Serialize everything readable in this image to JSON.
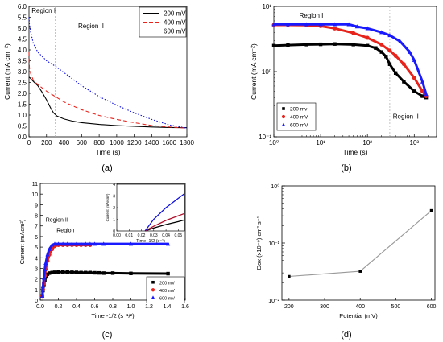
{
  "figure": {
    "panel_labels": [
      "(a)",
      "(b)",
      "(c)",
      "(d)"
    ]
  },
  "chart_data": [
    {
      "panel": "(a)",
      "type": "line",
      "xlabel": "Time (s)",
      "ylabel": "Current (mA cm⁻²)",
      "xlim": [
        0,
        1800
      ],
      "ylim": [
        0,
        6.0
      ],
      "xticks": [
        0,
        200,
        400,
        600,
        800,
        1000,
        1200,
        1400,
        1600,
        1800
      ],
      "yticks": [
        0.0,
        0.5,
        1.0,
        1.5,
        2.0,
        2.5,
        3.0,
        3.5,
        4.0,
        4.5,
        5.0,
        5.5,
        6.0
      ],
      "legend_position": "top-right",
      "annotations": [
        {
          "text": "Region I",
          "x": 30,
          "y": 5.7
        },
        {
          "text": "Region II",
          "x": 560,
          "y": 5.0
        }
      ],
      "vlines": [
        300
      ],
      "series": [
        {
          "name": "200 mV",
          "color": "#000000",
          "dash": "solid",
          "x": [
            0,
            10,
            50,
            100,
            150,
            200,
            250,
            280,
            320,
            400,
            500,
            600,
            800,
            1000,
            1200,
            1400,
            1600,
            1800
          ],
          "y": [
            2.75,
            2.72,
            2.55,
            2.35,
            2.05,
            1.7,
            1.3,
            1.1,
            0.95,
            0.82,
            0.72,
            0.65,
            0.57,
            0.52,
            0.48,
            0.45,
            0.43,
            0.42
          ]
        },
        {
          "name": "400 mV",
          "color": "#e8231c",
          "dash": "dashed",
          "x": [
            0,
            5,
            20,
            50,
            100,
            200,
            300,
            400,
            600,
            800,
            1000,
            1200,
            1400,
            1600,
            1800
          ],
          "y": [
            3.9,
            3.2,
            2.9,
            2.6,
            2.4,
            2.1,
            1.85,
            1.6,
            1.25,
            0.98,
            0.8,
            0.65,
            0.52,
            0.45,
            0.4
          ]
        },
        {
          "name": "600 mV",
          "color": "#1010e0",
          "dash": "dotted",
          "x": [
            0,
            5,
            20,
            50,
            100,
            200,
            300,
            400,
            500,
            600,
            800,
            1000,
            1200,
            1400,
            1600,
            1800
          ],
          "y": [
            5.5,
            5.2,
            4.8,
            4.3,
            3.9,
            3.5,
            3.25,
            2.95,
            2.65,
            2.35,
            1.85,
            1.45,
            1.1,
            0.8,
            0.55,
            0.4
          ]
        }
      ]
    },
    {
      "panel": "(b)",
      "type": "scatter",
      "xlabel": "Time (s)",
      "ylabel": "Current (mA cm⁻²)",
      "xscale": "log",
      "yscale": "log",
      "xlim": [
        1,
        3000
      ],
      "ylim": [
        0.1,
        10
      ],
      "xtick_labels": [
        "10⁰",
        "10¹",
        "10²",
        "10³"
      ],
      "ytick_labels": [
        "10⁻¹",
        "10⁰",
        "10¹"
      ],
      "legend_position": "bottom-left",
      "annotations": [
        {
          "text": "Region I",
          "x": 3.5,
          "y": 6.7
        },
        {
          "text": "Region II",
          "x": 350,
          "y": 0.19
        }
      ],
      "vlines": [
        300
      ],
      "series": [
        {
          "name": "200 mv",
          "color": "#000000",
          "marker": "square",
          "x": [
            1,
            2,
            5,
            10,
            20,
            50,
            100,
            150,
            200,
            250,
            300,
            400,
            600,
            1000,
            1500,
            1800
          ],
          "y": [
            2.5,
            2.55,
            2.6,
            2.62,
            2.65,
            2.6,
            2.5,
            2.3,
            2.0,
            1.7,
            1.3,
            0.95,
            0.7,
            0.5,
            0.42,
            0.4
          ]
        },
        {
          "name": "400 mV",
          "color": "#e8231c",
          "marker": "circle",
          "x": [
            1,
            2,
            5,
            10,
            20,
            50,
            100,
            200,
            300,
            400,
            600,
            1000,
            1500,
            1800
          ],
          "y": [
            5.2,
            5.2,
            5.15,
            5.0,
            4.6,
            3.9,
            3.3,
            2.6,
            2.1,
            1.75,
            1.3,
            0.8,
            0.5,
            0.42
          ]
        },
        {
          "name": "600 mV",
          "color": "#1a1aff",
          "marker": "triangle",
          "x": [
            1,
            2,
            5,
            10,
            20,
            40,
            60,
            100,
            200,
            300,
            500,
            800,
            1000,
            1500,
            1800
          ],
          "y": [
            5.3,
            5.3,
            5.3,
            5.3,
            5.3,
            5.3,
            4.9,
            4.6,
            4.0,
            3.6,
            2.9,
            2.0,
            1.5,
            0.7,
            0.45
          ]
        }
      ]
    },
    {
      "panel": "(c)",
      "type": "scatter",
      "xlabel": "Time -1/2 (s⁻¹/²)",
      "ylabel": "Current (mAcm²)",
      "xlim": [
        0.0,
        1.6
      ],
      "ylim": [
        0,
        11
      ],
      "xticks": [
        0.0,
        0.2,
        0.4,
        0.6,
        0.8,
        1.0,
        1.2,
        1.4,
        1.6
      ],
      "yticks": [
        0,
        1,
        2,
        3,
        4,
        5,
        6,
        7,
        8,
        9,
        10,
        11
      ],
      "legend_position": "bottom-right",
      "annotations": [
        {
          "text": "Region II",
          "x": 0.06,
          "y": 7.4
        },
        {
          "text": "Region I",
          "x": 0.18,
          "y": 6.4
        }
      ],
      "series": [
        {
          "name": "200 mV",
          "color": "#000000",
          "marker": "square",
          "x": [
            0.023,
            0.03,
            0.04,
            0.05,
            0.06,
            0.08,
            0.1,
            0.13,
            0.16,
            0.2,
            0.25,
            0.3,
            0.35,
            0.4,
            0.45,
            0.5,
            0.55,
            0.6,
            0.65,
            0.7,
            0.8,
            1.0,
            1.41
          ],
          "y": [
            0.4,
            0.9,
            1.4,
            1.9,
            2.2,
            2.45,
            2.55,
            2.6,
            2.63,
            2.65,
            2.65,
            2.64,
            2.63,
            2.62,
            2.6,
            2.6,
            2.6,
            2.58,
            2.57,
            2.55,
            2.55,
            2.52,
            2.5
          ]
        },
        {
          "name": "400 mV",
          "color": "#e8231c",
          "marker": "circle",
          "x": [
            0.023,
            0.03,
            0.04,
            0.05,
            0.06,
            0.08,
            0.1,
            0.13,
            0.16,
            0.2,
            0.25,
            0.3,
            0.35,
            0.4,
            0.45,
            0.5,
            0.55
          ],
          "y": [
            0.4,
            1.0,
            1.6,
            2.3,
            2.9,
            3.7,
            4.3,
            4.8,
            5.1,
            5.2,
            5.2,
            5.2,
            5.2,
            5.2,
            5.2,
            5.2,
            5.2
          ]
        },
        {
          "name": "600 mV",
          "color": "#1a1aff",
          "marker": "triangle",
          "x": [
            0.023,
            0.03,
            0.04,
            0.05,
            0.06,
            0.08,
            0.1,
            0.13,
            0.16,
            0.2,
            0.25,
            0.3,
            0.35,
            0.4,
            0.45,
            0.5,
            0.55,
            0.6,
            0.7,
            1.0,
            1.41
          ],
          "y": [
            0.4,
            1.3,
            2.1,
            2.9,
            3.5,
            4.3,
            4.8,
            5.2,
            5.3,
            5.3,
            5.3,
            5.3,
            5.3,
            5.3,
            5.3,
            5.3,
            5.3,
            5.3,
            5.3,
            5.3,
            5.3
          ]
        }
      ],
      "inset": {
        "xlabel": "Time -1/2 (s⁻¹)",
        "ylabel": "Current (mA/cm²)",
        "xlim": [
          0.0,
          0.055
        ],
        "ylim": [
          0,
          4
        ],
        "xtick_labels": [
          "0.00",
          "0.01",
          "0.02",
          "0.03",
          "0.04",
          "0.05"
        ],
        "ytick_labels": [
          "0",
          "1",
          "2",
          "3",
          "4"
        ],
        "series": [
          {
            "name": "200 mV",
            "color": "#000000",
            "x": [
              0.023,
              0.03,
              0.04,
              0.05,
              0.055
            ],
            "y": [
              0.0,
              0.25,
              0.55,
              0.8,
              0.95
            ]
          },
          {
            "name": "400 mV",
            "color": "#b0102c",
            "x": [
              0.023,
              0.03,
              0.04,
              0.05,
              0.055
            ],
            "y": [
              0.0,
              0.4,
              0.9,
              1.3,
              1.5
            ]
          },
          {
            "name": "600 mV",
            "color": "#1010e0",
            "x": [
              0.023,
              0.03,
              0.04,
              0.05,
              0.055
            ],
            "y": [
              0.0,
              1.0,
              2.0,
              2.8,
              3.2
            ]
          }
        ]
      }
    },
    {
      "panel": "(d)",
      "type": "line",
      "xlabel": "Potential (mV)",
      "ylabel": "Dox (x10⁻⁹) cm² s⁻¹",
      "yscale": "log",
      "xlim": [
        180,
        610
      ],
      "ylim": [
        0.01,
        1
      ],
      "xticks": [
        200,
        300,
        400,
        500,
        600
      ],
      "ytick_labels": [
        "10⁻²",
        "10⁻¹",
        "10⁰"
      ],
      "series": [
        {
          "name": "",
          "color": "#999999",
          "marker": "square",
          "x": [
            200,
            400,
            600
          ],
          "y": [
            0.026,
            0.032,
            0.37
          ]
        }
      ]
    }
  ]
}
